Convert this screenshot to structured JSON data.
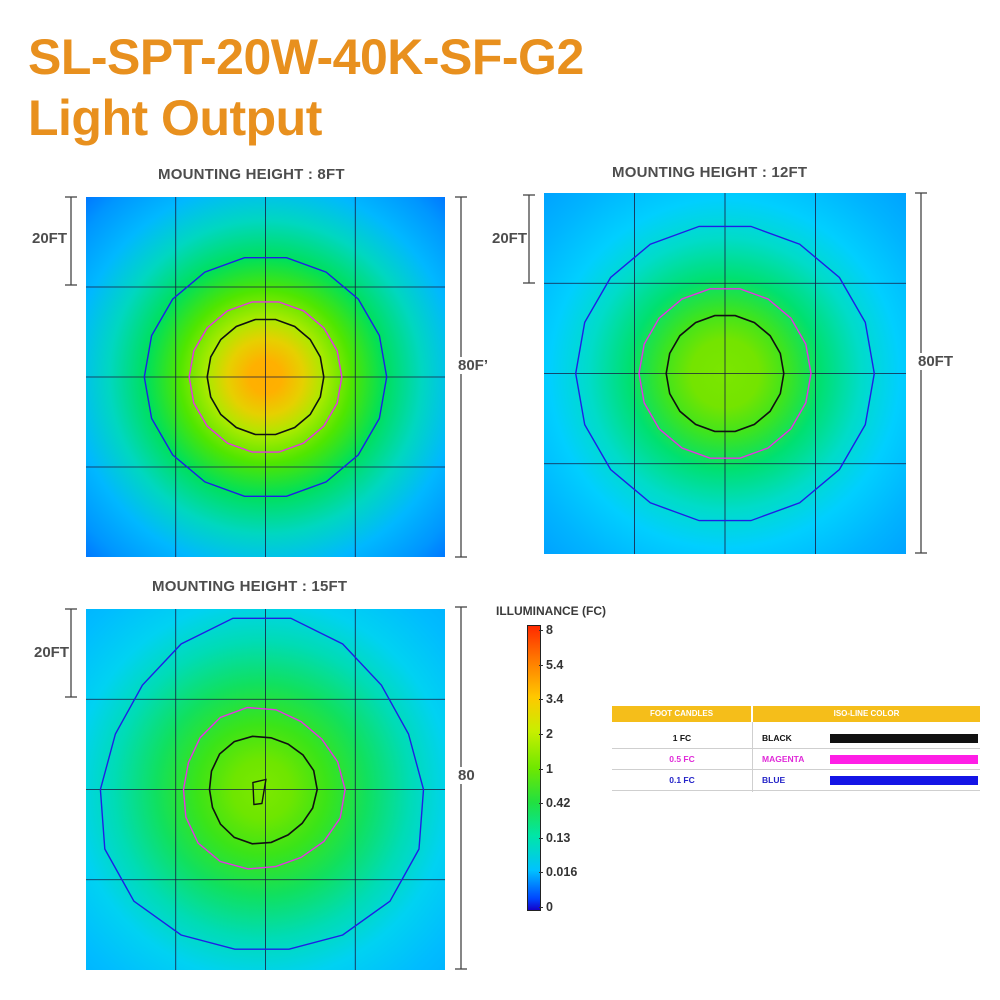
{
  "header": {
    "model": "SL-SPT-20W-40K-SF-G2",
    "subtitle": "Light Output"
  },
  "plots": [
    {
      "label": "MOUNTING HEIGHT : 8FT",
      "grid_label": "20FT",
      "extent_label": "80F’",
      "iso_radius_ft": {
        "1": 13,
        "0.5": 17,
        "0.1": 27
      }
    },
    {
      "label": "MOUNTING HEIGHT : 12FT",
      "grid_label": "20FT",
      "extent_label": "80FT",
      "iso_radius_ft": {
        "1": 13,
        "0.5": 19,
        "0.1": 33
      }
    },
    {
      "label": "MOUNTING HEIGHT : 15FT",
      "grid_label": "20FT",
      "extent_label": "80",
      "iso_radius_ft": {
        "1": 12,
        "0.5": 18,
        "0.1": 36
      }
    }
  ],
  "scale": {
    "title": "ILLUMINANCE (FC)",
    "ticks": [
      "8",
      "5.4",
      "3.4",
      "2",
      "1",
      "0.42",
      "0.13",
      "0.016",
      "0"
    ]
  },
  "legend": {
    "header_fc": "FOOT CANDLES",
    "header_color": "ISO-LINE COLOR",
    "rows": [
      {
        "fc": "1 FC",
        "color_name": "BLACK",
        "hex": "#111111",
        "fc_color": "#111111",
        "name_color": "#111111"
      },
      {
        "fc": "0.5 FC",
        "color_name": "MAGENTA",
        "hex": "#ff1ee6",
        "fc_color": "#e02ad8",
        "name_color": "#e02ad8"
      },
      {
        "fc": "0.1 FC",
        "color_name": "BLUE",
        "hex": "#1414e6",
        "fc_color": "#2424c8",
        "name_color": "#2424c8"
      }
    ]
  },
  "colors": {
    "title": "#e8901e",
    "legend_header": "#f5be1a"
  }
}
